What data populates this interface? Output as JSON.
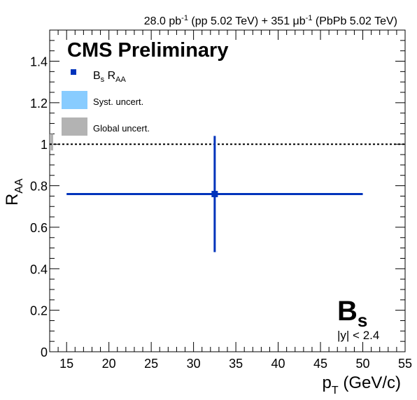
{
  "header": {
    "lumi_pp": "28.0 pb",
    "lumi_pp_sup": "-1",
    "lumi_pp_rest": " (pp 5.02 TeV) + 351 μb",
    "lumi_pbpb_sup": "-1",
    "lumi_pbpb_rest": " (PbPb 5.02 TeV)"
  },
  "labels": {
    "cms": "CMS Preliminary",
    "particle": "B",
    "particle_sub": "s",
    "rapidity": "|y| < 2.4"
  },
  "legend": {
    "marker_label": "B",
    "marker_label_sub": "s",
    "marker_label_rest": " R",
    "marker_label_rest_sub": "AA",
    "syst_label": "Syst. uncert.",
    "global_label": "Global uncert."
  },
  "colors": {
    "series": "#0033bb",
    "syst": "#88ccff",
    "global": "#b3b3b3"
  },
  "chart_data": {
    "type": "scatter",
    "xlim": [
      13,
      55
    ],
    "ylim": [
      0,
      1.55
    ],
    "x_ticks": [
      15,
      20,
      25,
      30,
      35,
      40,
      45,
      50,
      55
    ],
    "y_ticks": [
      0,
      0.2,
      0.4,
      0.6,
      0.8,
      1,
      1.2,
      1.4
    ],
    "x_tick_labels": [
      "15",
      "20",
      "25",
      "30",
      "35",
      "40",
      "45",
      "50",
      "55"
    ],
    "y_tick_labels": [
      "0",
      "0.2",
      "0.4",
      "0.6",
      "0.8",
      "1",
      "1.2",
      "1.4"
    ],
    "xlabel": "p",
    "xlabel_sub": "T",
    "xlabel_rest": " (GeV/c)",
    "ylabel": "R",
    "ylabel_sub": "AA",
    "reference_line_y": 1,
    "global_uncert": [
      0.97,
      1.05
    ],
    "series": [
      {
        "points": [
          {
            "x": 32.5,
            "y": 0.76,
            "x_low": 15,
            "x_high": 50,
            "y_low": 0.48,
            "y_high": 1.04
          }
        ]
      }
    ]
  }
}
